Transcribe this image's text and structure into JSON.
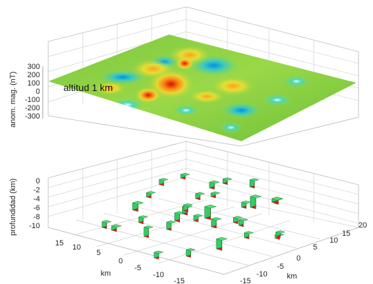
{
  "chart_data": [
    {
      "type": "surface",
      "zlabel": "anom. mag. (nT)",
      "z_ticks": [
        300,
        200,
        100,
        0,
        -100,
        -200,
        -300
      ],
      "zlim": [
        -300,
        300
      ],
      "annotation": "altitud 1 km",
      "colormap": [
        "#00a0e6",
        "#40d0c8",
        "#9be06a",
        "#f0e030",
        "#ff9a10",
        "#d22000"
      ],
      "surface_color": "#8ccf3a"
    },
    {
      "type": "bar3d",
      "zlabel": "profundidad (km)",
      "z_ticks": [
        0,
        -2,
        -4,
        -6,
        -8,
        -10
      ],
      "zlim": [
        -10,
        0
      ],
      "xlabel": "km",
      "ylabel": "km",
      "x_ticks": [
        15,
        10,
        5,
        0,
        -5,
        -10,
        -15
      ],
      "y_ticks": [
        -15,
        -10,
        -5,
        0,
        5,
        10,
        15,
        20
      ],
      "block_colors": {
        "top": "#55dd77",
        "side": "#e01818",
        "front": "#33cc66"
      },
      "blocks": [
        {
          "x": 4,
          "y": 6,
          "z": 5,
          "size": 1.1,
          "depth": 1.6
        },
        {
          "x": 5,
          "y": 10,
          "z": 4,
          "size": 1.0,
          "depth": 1.2
        },
        {
          "x": 3,
          "y": 14,
          "z": 3,
          "size": 1.0,
          "depth": 2.0
        },
        {
          "x": 0,
          "y": 2,
          "z": 5,
          "size": 1.0,
          "depth": 1.0
        },
        {
          "x": -2,
          "y": 9,
          "z": 2,
          "size": 1.2,
          "depth": 3.0
        },
        {
          "x": 2,
          "y": -4,
          "z": 1,
          "size": 1.1,
          "depth": 2.2
        },
        {
          "x": 6,
          "y": -8,
          "z": 0,
          "size": 1.0,
          "depth": 1.6
        },
        {
          "x": 9,
          "y": -6,
          "z": 2,
          "size": 1.2,
          "depth": 2.0
        },
        {
          "x": 10,
          "y": -2,
          "z": 3,
          "size": 1.0,
          "depth": 1.2
        },
        {
          "x": 12,
          "y": 3,
          "z": 4,
          "size": 1.0,
          "depth": 1.4
        },
        {
          "x": 11,
          "y": -11,
          "z": -2,
          "size": 1.0,
          "depth": 1.6
        },
        {
          "x": 7,
          "y": -13,
          "z": -1,
          "size": 1.1,
          "depth": 1.2
        },
        {
          "x": 3,
          "y": -10,
          "z": -1,
          "size": 1.0,
          "depth": 2.6
        },
        {
          "x": 1,
          "y": -7,
          "z": 0,
          "size": 1.0,
          "depth": 2.0
        },
        {
          "x": -1,
          "y": -3,
          "z": 1,
          "size": 1.0,
          "depth": 1.4
        },
        {
          "x": -3,
          "y": -1,
          "z": 0,
          "size": 1.1,
          "depth": 2.2
        },
        {
          "x": -5,
          "y": 3,
          "z": -1,
          "size": 1.0,
          "depth": 1.6
        },
        {
          "x": -7,
          "y": -4,
          "z": -3,
          "size": 1.2,
          "depth": 2.8
        },
        {
          "x": -9,
          "y": 0,
          "z": -2,
          "size": 1.0,
          "depth": 1.4
        },
        {
          "x": -6,
          "y": -10,
          "z": -4,
          "size": 1.0,
          "depth": 1.8
        },
        {
          "x": -11,
          "y": 5,
          "z": -3,
          "size": 1.0,
          "depth": 1.2
        },
        {
          "x": 2,
          "y": 3,
          "z": 0,
          "size": 1.3,
          "depth": 3.2
        },
        {
          "x": 4,
          "y": 0,
          "z": 1,
          "size": 1.0,
          "depth": 1.6
        },
        {
          "x": 6,
          "y": 2,
          "z": -1,
          "size": 1.1,
          "depth": 2.0
        },
        {
          "x": 8,
          "y": 7,
          "z": 0,
          "size": 1.0,
          "depth": 1.4
        },
        {
          "x": -2,
          "y": -13,
          "z": -5,
          "size": 1.0,
          "depth": 1.6
        },
        {
          "x": -8,
          "y": 8,
          "z": -6,
          "size": 1.0,
          "depth": 1.0
        },
        {
          "x": 0,
          "y": 16,
          "z": -2,
          "size": 1.2,
          "depth": 1.0
        },
        {
          "x": 14,
          "y": 10,
          "z": 2,
          "size": 1.0,
          "depth": 1.0
        },
        {
          "x": -4,
          "y": 12,
          "z": 1,
          "size": 1.0,
          "depth": 1.2
        },
        {
          "x": 1,
          "y": 10,
          "z": -1,
          "size": 1.0,
          "depth": 1.4
        },
        {
          "x": -1,
          "y": 6,
          "z": -3,
          "size": 1.0,
          "depth": 1.4
        }
      ]
    }
  ]
}
